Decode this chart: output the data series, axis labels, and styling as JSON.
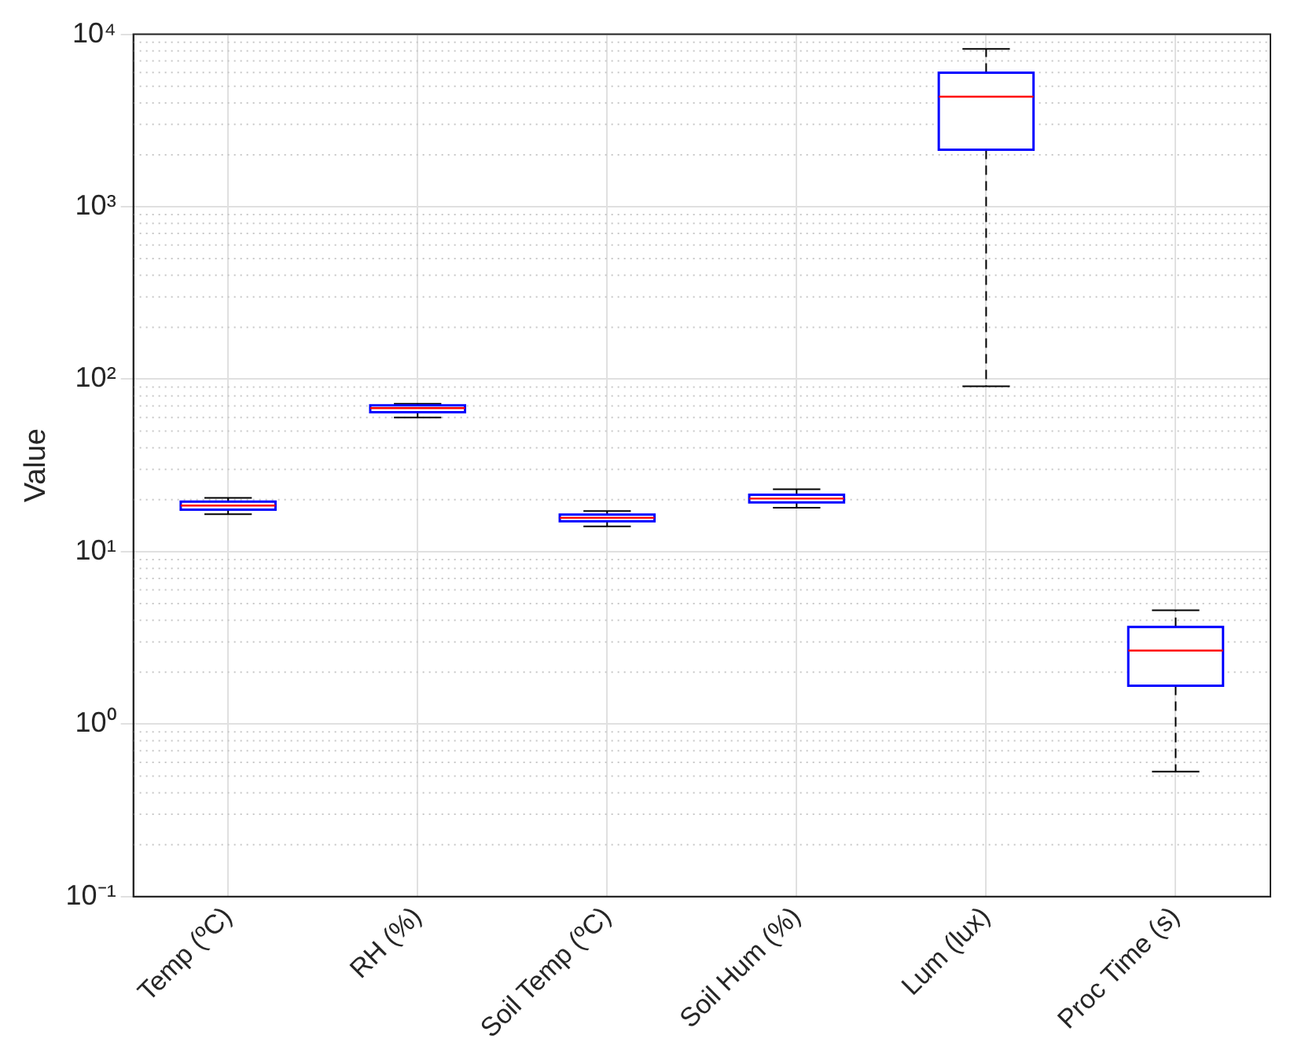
{
  "chart_data": {
    "type": "box",
    "ylabel": "Value",
    "categories": [
      "Temp (ºC)",
      "RH (%)",
      "Soil Temp (ºC)",
      "Soil Hum (%)",
      "Lum (lux)",
      "Proc Time (s)"
    ],
    "boxes": [
      {
        "low": 16.5,
        "q1": 17.5,
        "median": 18.5,
        "q3": 19.5,
        "high": 20.5
      },
      {
        "low": 60,
        "q1": 64.3,
        "median": 68,
        "q3": 70.6,
        "high": 72
      },
      {
        "low": 14,
        "q1": 15,
        "median": 15.7,
        "q3": 16.4,
        "high": 17.2
      },
      {
        "low": 18,
        "q1": 19.3,
        "median": 20.3,
        "q3": 21.4,
        "high": 23
      },
      {
        "low": 91,
        "q1": 2140,
        "median": 4350,
        "q3": 5980,
        "high": 8230
      },
      {
        "low": 0.53,
        "q1": 1.67,
        "median": 2.67,
        "q3": 3.66,
        "high": 4.57
      }
    ],
    "log": "y",
    "ylim": [
      0.1,
      10000
    ],
    "yticks": [
      {
        "value": 0.1,
        "label": "10⁻¹"
      },
      {
        "value": 1,
        "label": "10⁰"
      },
      {
        "value": 10,
        "label": "10¹"
      },
      {
        "value": 100,
        "label": "10²"
      },
      {
        "value": 1000,
        "label": "10³"
      },
      {
        "value": 10000,
        "label": "10⁴"
      }
    ],
    "grid": true,
    "legend": false,
    "color": "#0000ff"
  }
}
